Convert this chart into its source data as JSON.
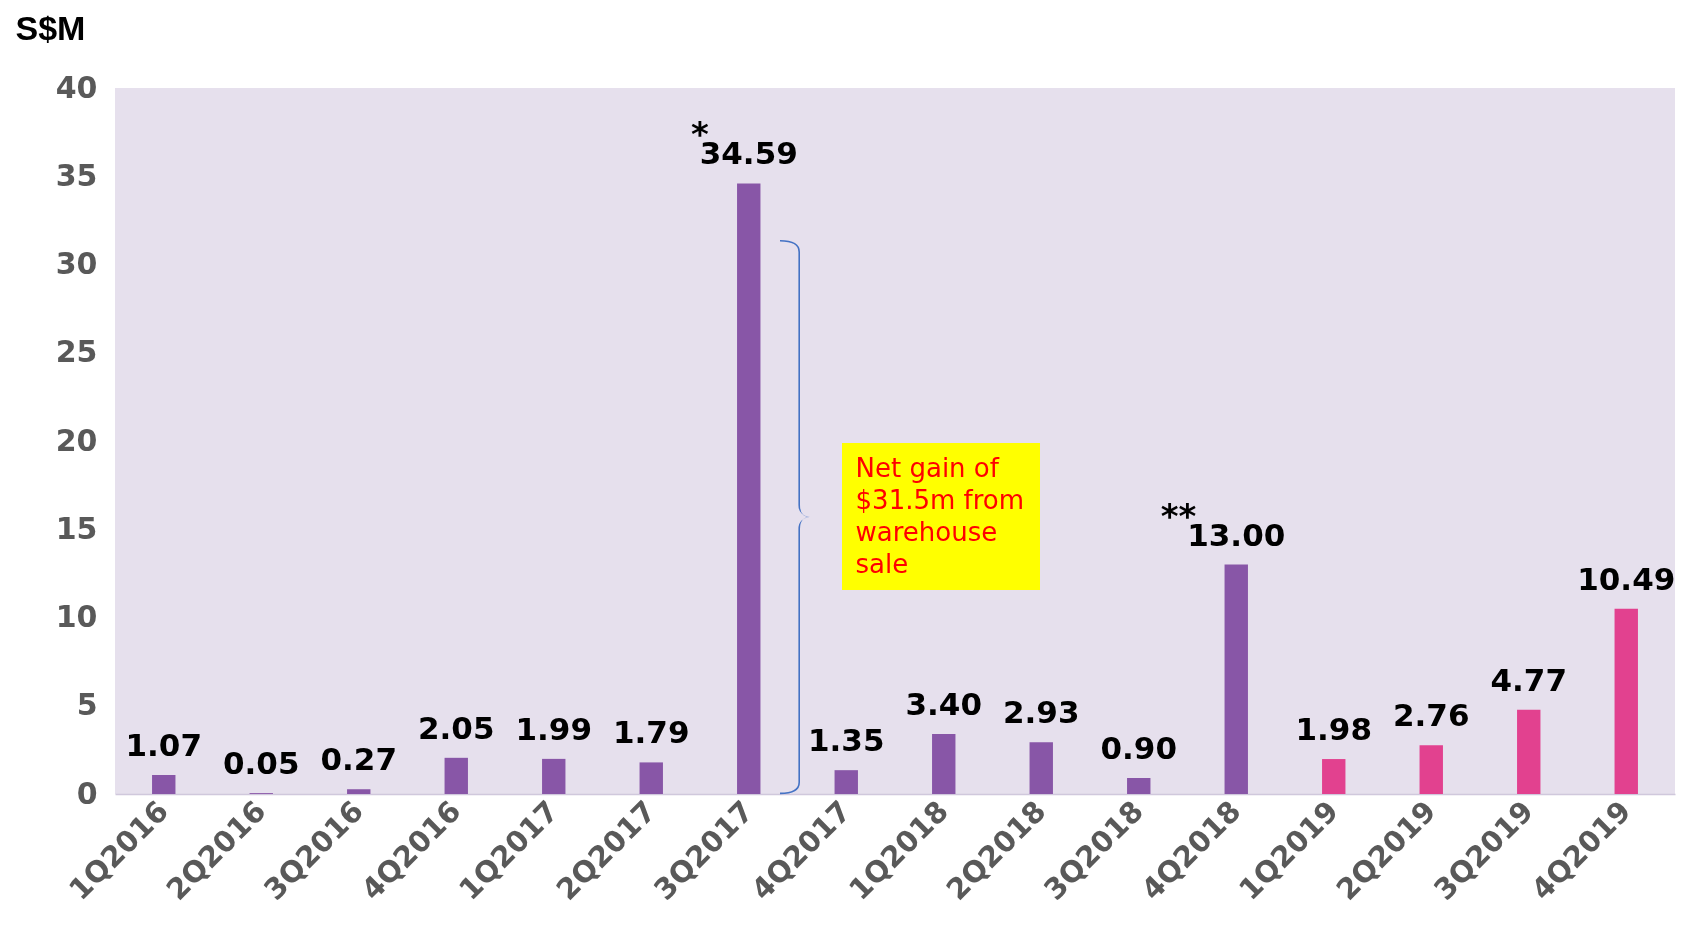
{
  "chart_data": {
    "type": "bar",
    "ylabel": "S$M",
    "categories": [
      "1Q2016",
      "2Q2016",
      "3Q2016",
      "4Q2016",
      "1Q2017",
      "2Q2017",
      "3Q2017",
      "4Q2017",
      "1Q2018",
      "2Q2018",
      "3Q2018",
      "4Q2018",
      "1Q2019",
      "2Q2019",
      "3Q2019",
      "4Q2019"
    ],
    "values": [
      1.07,
      0.05,
      0.27,
      2.05,
      1.99,
      1.79,
      34.59,
      1.35,
      3.4,
      2.93,
      0.9,
      13.0,
      1.98,
      2.76,
      4.77,
      10.49
    ],
    "colors": [
      "#8856a7",
      "#8856a7",
      "#8856a7",
      "#8856a7",
      "#8856a7",
      "#8856a7",
      "#8856a7",
      "#8856a7",
      "#8856a7",
      "#8856a7",
      "#8856a7",
      "#8856a7",
      "#e2418f",
      "#e2418f",
      "#e2418f",
      "#e2418f"
    ],
    "value_labels": [
      "1.07",
      "0.05",
      "0.27",
      "2.05",
      "1.99",
      "1.79",
      "34.59",
      "1.35",
      "3.40",
      "2.93",
      "0.90",
      "13.00",
      "1.98",
      "2.76",
      "4.77",
      "10.49"
    ],
    "ylim": [
      0,
      40
    ],
    "yticks": [
      0,
      5,
      10,
      15,
      20,
      25,
      30,
      35,
      40
    ],
    "grid": false,
    "annotations": [
      {
        "text": "*",
        "x": "3Q2017",
        "y": 34.59
      },
      {
        "text": "**",
        "x": "4Q2018",
        "y": 13.0
      },
      "Net gain of $31.5m from warehouse sale"
    ]
  }
}
